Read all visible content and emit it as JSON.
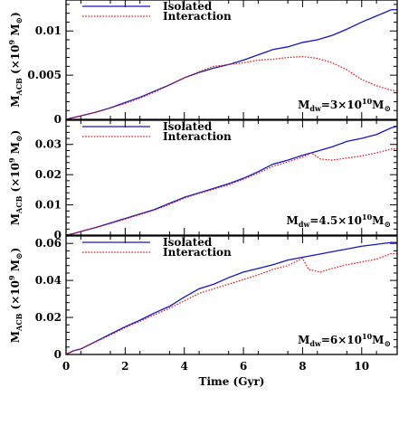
{
  "figure": {
    "xlabel": "Time (Gyr)",
    "x_ticks": [
      0,
      2,
      4,
      6,
      8,
      10
    ],
    "x_tick_labels": [
      "0",
      "2",
      "4",
      "6",
      "8",
      "10"
    ],
    "xlim": [
      0,
      11.2
    ],
    "colors": {
      "isolated": "#1414c8",
      "interaction": "#e01414"
    }
  },
  "chart_data": [
    {
      "type": "line",
      "xlabel": "",
      "ylabel": {
        "main": "M",
        "sub": "ACB",
        "unit_pre": " (×10",
        "unit_exp": "9",
        "unit_post": " M",
        "unit_sym": "⊙",
        "unit_close": ")"
      },
      "ylim": [
        0,
        0.0135
      ],
      "y_ticks": [
        0,
        0.005,
        0.01
      ],
      "y_tick_labels": [
        "0",
        "0.005",
        "0.01"
      ],
      "legend_position": "top-left",
      "annotation": {
        "lhs": "M",
        "lhs_sub": "dw",
        "eq": "=3×10",
        "exp": "10",
        "unit": "M",
        "unit_sub": "⊙"
      },
      "series": [
        {
          "name": "Isolated",
          "style": "solid",
          "x": [
            0,
            0.25,
            0.5,
            1,
            1.5,
            2,
            2.5,
            3,
            3.5,
            4,
            4.5,
            5,
            5.5,
            6,
            6.5,
            7,
            7.5,
            8,
            8.5,
            9,
            9.5,
            10,
            10.5,
            11,
            11.2
          ],
          "y": [
            0,
            0.0002,
            0.0004,
            0.0008,
            0.0013,
            0.0019,
            0.0025,
            0.0032,
            0.0039,
            0.0047,
            0.0053,
            0.0058,
            0.0062,
            0.0067,
            0.0073,
            0.0079,
            0.0082,
            0.0087,
            0.009,
            0.0095,
            0.0102,
            0.011,
            0.0117,
            0.0124,
            0.0124
          ]
        },
        {
          "name": "Interaction",
          "style": "dotted",
          "x": [
            0,
            0.25,
            0.5,
            1,
            1.5,
            2,
            2.5,
            3,
            3.5,
            4,
            4.5,
            5,
            5.5,
            6,
            6.5,
            7,
            7.5,
            8,
            8.5,
            9,
            9.5,
            10,
            10.5,
            11,
            11.2
          ],
          "y": [
            0,
            0.0002,
            0.0004,
            0.0008,
            0.0013,
            0.0018,
            0.0024,
            0.0031,
            0.0039,
            0.0047,
            0.0054,
            0.006,
            0.0062,
            0.0064,
            0.0067,
            0.0068,
            0.007,
            0.0071,
            0.0069,
            0.0064,
            0.0056,
            0.0045,
            0.0038,
            0.0033,
            0.0032
          ]
        }
      ]
    },
    {
      "type": "line",
      "xlabel": "",
      "ylabel": {
        "main": "M",
        "sub": "ACB",
        "unit_pre": " (×10",
        "unit_exp": "9",
        "unit_post": " M",
        "unit_sym": "⊙",
        "unit_close": ")"
      },
      "ylim": [
        0,
        0.038
      ],
      "y_ticks": [
        0,
        0.01,
        0.02,
        0.03
      ],
      "y_tick_labels": [
        "0",
        "0.01",
        "0.02",
        "0.03"
      ],
      "legend_position": "top-left",
      "annotation": {
        "lhs": "M",
        "lhs_sub": "dw",
        "eq": "=4.5×10",
        "exp": "10",
        "unit": "M",
        "unit_sub": "⊙"
      },
      "series": [
        {
          "name": "Isolated",
          "style": "solid",
          "x": [
            0,
            0.25,
            0.5,
            1,
            1.5,
            2,
            2.5,
            3,
            3.5,
            4,
            4.5,
            5,
            5.5,
            6,
            6.5,
            7,
            7.5,
            8,
            8.5,
            9,
            9.5,
            10,
            10.5,
            11,
            11.2
          ],
          "y": [
            0,
            0.0005,
            0.0012,
            0.0025,
            0.004,
            0.0055,
            0.007,
            0.0085,
            0.0105,
            0.0125,
            0.014,
            0.0155,
            0.017,
            0.0188,
            0.021,
            0.0235,
            0.0248,
            0.0264,
            0.0278,
            0.0292,
            0.031,
            0.032,
            0.0333,
            0.0355,
            0.036
          ]
        },
        {
          "name": "Interaction",
          "style": "dotted",
          "x": [
            0,
            0.25,
            0.5,
            1,
            1.5,
            2,
            2.5,
            3,
            3.5,
            4,
            4.5,
            5,
            5.5,
            6,
            6.5,
            7,
            7.5,
            8,
            8.3,
            8.6,
            9,
            9.5,
            10,
            10.5,
            11,
            11.2
          ],
          "y": [
            0,
            0.0005,
            0.0012,
            0.0025,
            0.0038,
            0.0053,
            0.0068,
            0.0083,
            0.0102,
            0.0122,
            0.0138,
            0.0152,
            0.0166,
            0.0185,
            0.0205,
            0.0228,
            0.0242,
            0.0258,
            0.0272,
            0.0252,
            0.0248,
            0.0255,
            0.0262,
            0.0272,
            0.0285,
            0.0285
          ]
        }
      ]
    },
    {
      "type": "line",
      "xlabel": "Time (Gyr)",
      "ylabel": {
        "main": "M",
        "sub": "ACB",
        "unit_pre": " (×10",
        "unit_exp": "9",
        "unit_post": " M",
        "unit_sym": "⊙",
        "unit_close": ")"
      },
      "ylim": [
        0,
        0.064
      ],
      "y_ticks": [
        0,
        0.02,
        0.04,
        0.06
      ],
      "y_tick_labels": [
        "0",
        "0.02",
        "0.04",
        "0.06"
      ],
      "legend_position": "top-left",
      "annotation": {
        "lhs": "M",
        "lhs_sub": "dw",
        "eq": "=6×10",
        "exp": "10",
        "unit": "M",
        "unit_sub": "⊙"
      },
      "series": [
        {
          "name": "Isolated",
          "style": "solid",
          "x": [
            0,
            0.25,
            0.5,
            1,
            1.5,
            2,
            2.5,
            3,
            3.5,
            4,
            4.5,
            5,
            5.5,
            6,
            6.5,
            7,
            7.5,
            8,
            8.5,
            9,
            9.5,
            10,
            10.5,
            11,
            11.2
          ],
          "y": [
            0,
            0.002,
            0.003,
            0.007,
            0.011,
            0.015,
            0.0185,
            0.0225,
            0.026,
            0.031,
            0.0355,
            0.038,
            0.0415,
            0.0445,
            0.0465,
            0.0485,
            0.051,
            0.0525,
            0.054,
            0.0555,
            0.057,
            0.0585,
            0.0595,
            0.0605,
            0.0605
          ]
        },
        {
          "name": "Interaction",
          "style": "dotted",
          "x": [
            0,
            0.25,
            0.5,
            1,
            1.5,
            2,
            2.5,
            3,
            3.5,
            4,
            4.5,
            5,
            5.5,
            6,
            6.5,
            7,
            7.5,
            8,
            8.2,
            8.6,
            9,
            9.5,
            10,
            10.5,
            11,
            11.2
          ],
          "y": [
            0,
            0.002,
            0.003,
            0.0068,
            0.0105,
            0.0145,
            0.018,
            0.0215,
            0.025,
            0.029,
            0.033,
            0.0355,
            0.038,
            0.0405,
            0.043,
            0.046,
            0.048,
            0.052,
            0.046,
            0.0445,
            0.0465,
            0.0485,
            0.05,
            0.0515,
            0.0545,
            0.0545
          ]
        }
      ]
    }
  ]
}
